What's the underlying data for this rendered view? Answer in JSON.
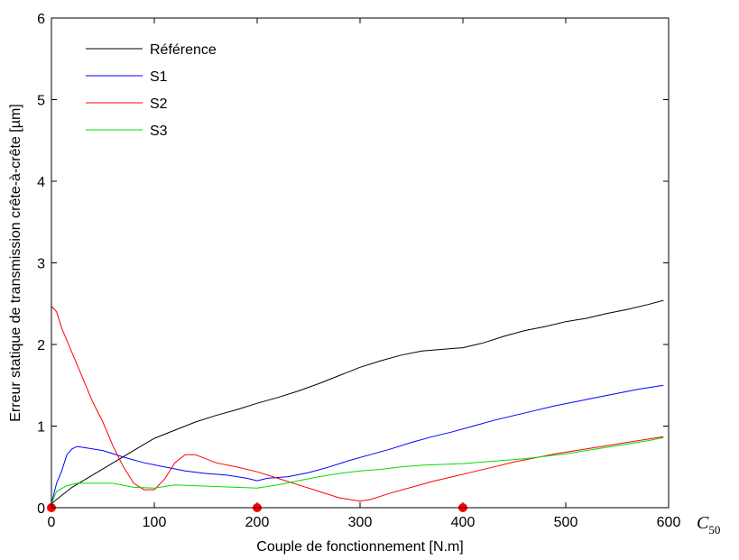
{
  "chart_data": {
    "type": "line",
    "xlabel": "Couple de fonctionnement [N.m]",
    "ylabel": "Erreur statique de transmission crête-à-crête [µm]",
    "xlim": [
      0,
      600
    ],
    "ylim": [
      0,
      6
    ],
    "xticks": [
      0,
      100,
      200,
      300,
      400,
      500,
      600
    ],
    "yticks": [
      0,
      1,
      2,
      3,
      4,
      5,
      6
    ],
    "grid": false,
    "legend_position": "top-left",
    "annotation": {
      "main": "C",
      "sub": "50"
    },
    "markers": {
      "color": "#ff0000",
      "points": [
        [
          0,
          0
        ],
        [
          200,
          0
        ],
        [
          400,
          0
        ]
      ]
    },
    "series": [
      {
        "name": "Référence",
        "color": "#000000",
        "points": [
          [
            0,
            0.05
          ],
          [
            10,
            0.15
          ],
          [
            20,
            0.25
          ],
          [
            40,
            0.4
          ],
          [
            60,
            0.55
          ],
          [
            80,
            0.7
          ],
          [
            100,
            0.85
          ],
          [
            120,
            0.95
          ],
          [
            140,
            1.05
          ],
          [
            160,
            1.13
          ],
          [
            180,
            1.2
          ],
          [
            200,
            1.28
          ],
          [
            220,
            1.35
          ],
          [
            240,
            1.43
          ],
          [
            260,
            1.52
          ],
          [
            280,
            1.62
          ],
          [
            300,
            1.72
          ],
          [
            320,
            1.8
          ],
          [
            340,
            1.87
          ],
          [
            360,
            1.92
          ],
          [
            380,
            1.94
          ],
          [
            400,
            1.96
          ],
          [
            420,
            2.02
          ],
          [
            440,
            2.1
          ],
          [
            460,
            2.17
          ],
          [
            480,
            2.22
          ],
          [
            500,
            2.28
          ],
          [
            520,
            2.32
          ],
          [
            540,
            2.38
          ],
          [
            560,
            2.43
          ],
          [
            580,
            2.49
          ],
          [
            595,
            2.54
          ]
        ]
      },
      {
        "name": "S1",
        "color": "#0000ff",
        "points": [
          [
            0,
            0.05
          ],
          [
            5,
            0.3
          ],
          [
            10,
            0.45
          ],
          [
            15,
            0.65
          ],
          [
            20,
            0.72
          ],
          [
            25,
            0.75
          ],
          [
            35,
            0.73
          ],
          [
            50,
            0.7
          ],
          [
            70,
            0.62
          ],
          [
            90,
            0.55
          ],
          [
            110,
            0.5
          ],
          [
            130,
            0.45
          ],
          [
            150,
            0.42
          ],
          [
            170,
            0.4
          ],
          [
            190,
            0.36
          ],
          [
            200,
            0.33
          ],
          [
            210,
            0.36
          ],
          [
            230,
            0.38
          ],
          [
            250,
            0.43
          ],
          [
            270,
            0.5
          ],
          [
            290,
            0.58
          ],
          [
            310,
            0.65
          ],
          [
            330,
            0.72
          ],
          [
            350,
            0.8
          ],
          [
            370,
            0.87
          ],
          [
            390,
            0.93
          ],
          [
            410,
            1.0
          ],
          [
            430,
            1.07
          ],
          [
            450,
            1.13
          ],
          [
            470,
            1.19
          ],
          [
            490,
            1.25
          ],
          [
            510,
            1.3
          ],
          [
            530,
            1.35
          ],
          [
            550,
            1.4
          ],
          [
            570,
            1.45
          ],
          [
            595,
            1.5
          ]
        ]
      },
      {
        "name": "S2",
        "color": "#ff0000",
        "points": [
          [
            0,
            2.47
          ],
          [
            5,
            2.4
          ],
          [
            10,
            2.2
          ],
          [
            20,
            1.9
          ],
          [
            30,
            1.6
          ],
          [
            40,
            1.3
          ],
          [
            50,
            1.05
          ],
          [
            60,
            0.75
          ],
          [
            70,
            0.5
          ],
          [
            80,
            0.3
          ],
          [
            90,
            0.22
          ],
          [
            100,
            0.22
          ],
          [
            110,
            0.35
          ],
          [
            120,
            0.55
          ],
          [
            130,
            0.65
          ],
          [
            140,
            0.65
          ],
          [
            150,
            0.6
          ],
          [
            160,
            0.55
          ],
          [
            180,
            0.5
          ],
          [
            200,
            0.44
          ],
          [
            220,
            0.36
          ],
          [
            240,
            0.28
          ],
          [
            260,
            0.2
          ],
          [
            280,
            0.12
          ],
          [
            300,
            0.08
          ],
          [
            310,
            0.1
          ],
          [
            330,
            0.18
          ],
          [
            350,
            0.25
          ],
          [
            370,
            0.32
          ],
          [
            390,
            0.38
          ],
          [
            410,
            0.44
          ],
          [
            430,
            0.5
          ],
          [
            450,
            0.56
          ],
          [
            470,
            0.61
          ],
          [
            490,
            0.66
          ],
          [
            510,
            0.7
          ],
          [
            530,
            0.74
          ],
          [
            550,
            0.78
          ],
          [
            570,
            0.82
          ],
          [
            595,
            0.87
          ]
        ]
      },
      {
        "name": "S3",
        "color": "#00dd00",
        "points": [
          [
            0,
            0.05
          ],
          [
            5,
            0.2
          ],
          [
            15,
            0.27
          ],
          [
            25,
            0.3
          ],
          [
            40,
            0.3
          ],
          [
            60,
            0.3
          ],
          [
            80,
            0.25
          ],
          [
            100,
            0.24
          ],
          [
            120,
            0.28
          ],
          [
            140,
            0.27
          ],
          [
            160,
            0.26
          ],
          [
            180,
            0.25
          ],
          [
            200,
            0.24
          ],
          [
            220,
            0.28
          ],
          [
            240,
            0.33
          ],
          [
            260,
            0.38
          ],
          [
            280,
            0.42
          ],
          [
            300,
            0.45
          ],
          [
            320,
            0.47
          ],
          [
            340,
            0.5
          ],
          [
            360,
            0.52
          ],
          [
            380,
            0.53
          ],
          [
            400,
            0.54
          ],
          [
            420,
            0.56
          ],
          [
            440,
            0.58
          ],
          [
            460,
            0.6
          ],
          [
            480,
            0.63
          ],
          [
            500,
            0.66
          ],
          [
            520,
            0.7
          ],
          [
            540,
            0.74
          ],
          [
            560,
            0.78
          ],
          [
            580,
            0.82
          ],
          [
            595,
            0.86
          ]
        ]
      }
    ]
  }
}
